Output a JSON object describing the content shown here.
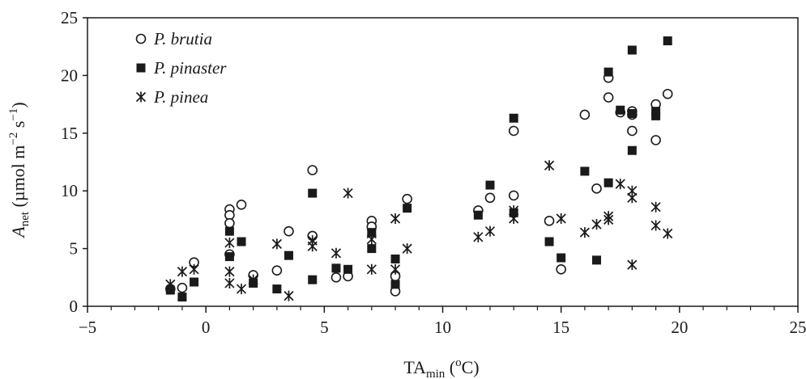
{
  "chart_data": {
    "type": "scatter",
    "title": "",
    "xlabel": {
      "main": "TA",
      "sub": "min",
      "rest": " (",
      "sup": "o",
      "end": "C)"
    },
    "ylabel": {
      "main": "A",
      "sub": "net",
      "unit_pre": " (µmol m",
      "sup1": "−2",
      "unit_mid": " s",
      "sup2": "−1",
      "unit_end": ")"
    },
    "xlim": [
      -5,
      25
    ],
    "ylim": [
      0,
      25
    ],
    "xticks": [
      -5,
      0,
      5,
      10,
      15,
      20,
      25
    ],
    "xtick_labels": [
      "−5",
      "0",
      "5",
      "10",
      "15",
      "20",
      "25"
    ],
    "yticks": [
      0,
      5,
      10,
      15,
      20,
      25
    ],
    "ytick_labels": [
      "0",
      "5",
      "10",
      "15",
      "20",
      "25"
    ],
    "grid": false,
    "legend_position": "top-left",
    "series": [
      {
        "name": "P. brutia",
        "marker": "open-circle",
        "points": [
          [
            -1.5,
            1.5
          ],
          [
            -1,
            1.6
          ],
          [
            -0.5,
            3.8
          ],
          [
            1,
            8.4
          ],
          [
            1,
            7.9
          ],
          [
            1,
            7.2
          ],
          [
            1,
            4.5
          ],
          [
            1.5,
            8.8
          ],
          [
            2,
            2.7
          ],
          [
            3,
            3.1
          ],
          [
            3.5,
            6.5
          ],
          [
            4.5,
            11.8
          ],
          [
            4.5,
            6.1
          ],
          [
            5.5,
            2.5
          ],
          [
            6,
            2.6
          ],
          [
            7,
            7.4
          ],
          [
            7,
            6.9
          ],
          [
            8,
            2.6
          ],
          [
            8,
            1.3
          ],
          [
            8.5,
            9.3
          ],
          [
            11.5,
            8.3
          ],
          [
            12,
            9.4
          ],
          [
            13,
            15.2
          ],
          [
            13,
            9.6
          ],
          [
            14.5,
            7.4
          ],
          [
            15,
            3.2
          ],
          [
            16,
            16.6
          ],
          [
            16.5,
            10.2
          ],
          [
            17,
            19.8
          ],
          [
            17,
            18.1
          ],
          [
            17.5,
            16.8
          ],
          [
            18,
            16.9
          ],
          [
            18,
            16.6
          ],
          [
            18,
            15.2
          ],
          [
            19,
            17.5
          ],
          [
            19,
            14.4
          ],
          [
            19.5,
            18.4
          ]
        ]
      },
      {
        "name": "P. pinaster",
        "marker": "filled-square",
        "points": [
          [
            -1.5,
            1.4
          ],
          [
            -1,
            0.8
          ],
          [
            -0.5,
            2.1
          ],
          [
            1,
            6.5
          ],
          [
            1,
            4.3
          ],
          [
            1.5,
            5.6
          ],
          [
            2,
            2.0
          ],
          [
            3,
            1.5
          ],
          [
            3.5,
            4.4
          ],
          [
            4.5,
            9.8
          ],
          [
            4.5,
            2.3
          ],
          [
            5.5,
            3.3
          ],
          [
            6,
            3.2
          ],
          [
            7,
            5.0
          ],
          [
            7,
            6.4
          ],
          [
            8,
            4.1
          ],
          [
            8,
            1.9
          ],
          [
            8.5,
            8.5
          ],
          [
            11.5,
            7.9
          ],
          [
            12,
            10.5
          ],
          [
            13,
            16.3
          ],
          [
            13,
            8.1
          ],
          [
            14.5,
            5.6
          ],
          [
            15,
            4.2
          ],
          [
            16,
            11.7
          ],
          [
            16.5,
            4.0
          ],
          [
            17,
            20.3
          ],
          [
            17,
            10.7
          ],
          [
            17.5,
            17.0
          ],
          [
            18,
            22.2
          ],
          [
            18,
            16.7
          ],
          [
            18,
            13.5
          ],
          [
            19,
            16.9
          ],
          [
            19,
            16.5
          ],
          [
            19.5,
            23.0
          ]
        ]
      },
      {
        "name": "P. pinea",
        "marker": "asterisk",
        "points": [
          [
            -1.5,
            1.9
          ],
          [
            -1,
            3.0
          ],
          [
            -0.5,
            3.2
          ],
          [
            1,
            5.5
          ],
          [
            1,
            3.0
          ],
          [
            1,
            2.0
          ],
          [
            1.5,
            1.5
          ],
          [
            2,
            2.3
          ],
          [
            3,
            5.4
          ],
          [
            3.5,
            0.9
          ],
          [
            4.5,
            5.2
          ],
          [
            4.5,
            5.7
          ],
          [
            5.5,
            4.6
          ],
          [
            6,
            9.8
          ],
          [
            7,
            6.3
          ],
          [
            7,
            5.8
          ],
          [
            7,
            3.2
          ],
          [
            8,
            7.6
          ],
          [
            8,
            3.2
          ],
          [
            8.5,
            5.0
          ],
          [
            11.5,
            6.0
          ],
          [
            12,
            6.5
          ],
          [
            13,
            8.3
          ],
          [
            13,
            7.6
          ],
          [
            14.5,
            12.2
          ],
          [
            15,
            7.6
          ],
          [
            16,
            6.4
          ],
          [
            16.5,
            7.1
          ],
          [
            17,
            7.8
          ],
          [
            17,
            7.5
          ],
          [
            17.5,
            10.6
          ],
          [
            18,
            10.0
          ],
          [
            18,
            9.4
          ],
          [
            18,
            3.6
          ],
          [
            19,
            8.6
          ],
          [
            19,
            7.0
          ],
          [
            19.5,
            6.3
          ]
        ]
      }
    ]
  }
}
